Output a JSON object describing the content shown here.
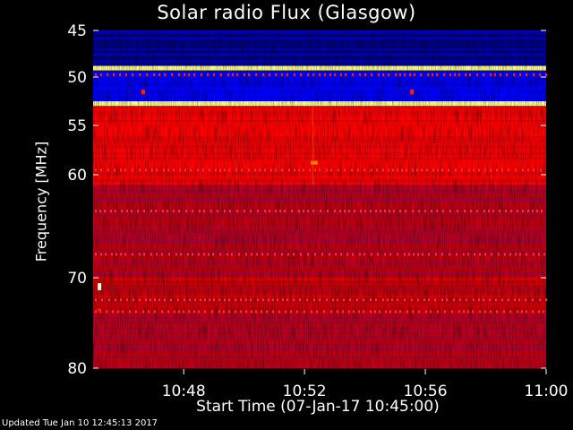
{
  "chart_data": {
    "type": "heatmap",
    "title": "Solar radio Flux (Glasgow)",
    "xlabel": "Start Time (07-Jan-17 10:45:00)",
    "ylabel": "Frequency [MHz]",
    "x_range": [
      "10:45",
      "11:00"
    ],
    "y_range_mhz": [
      45,
      80
    ],
    "x_ticks": [
      "10:48",
      "10:52",
      "10:56",
      "11:00"
    ],
    "y_ticks": [
      45,
      50,
      55,
      60,
      70,
      80
    ],
    "colormap": [
      "#000080",
      "#0000ff",
      "#800080",
      "#c00010",
      "#ff0000",
      "#ff8000",
      "#ffff80"
    ],
    "bands": [
      {
        "from": 45,
        "to": 48.8,
        "level": "low"
      },
      {
        "from": 48.8,
        "to": 49.3,
        "level": "saturated"
      },
      {
        "from": 49.3,
        "to": 52.5,
        "level": "low-mid"
      },
      {
        "from": 52.5,
        "to": 53.0,
        "level": "saturated"
      },
      {
        "from": 53.0,
        "to": 61.0,
        "level": "high"
      },
      {
        "from": 61.0,
        "to": 70.0,
        "level": "mixed"
      },
      {
        "from": 70.0,
        "to": 74.0,
        "level": "mixed-high"
      },
      {
        "from": 74.0,
        "to": 80.0,
        "level": "mixed"
      }
    ],
    "grid": false
  },
  "footer": "Updated Tue Jan 10 12:45:13 2017"
}
